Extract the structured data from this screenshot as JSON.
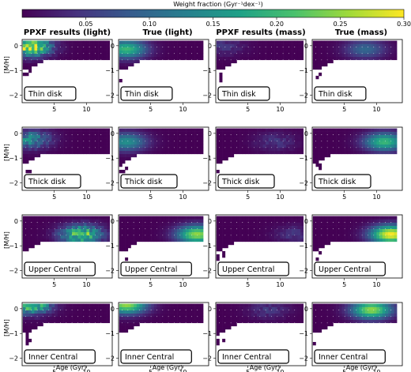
{
  "colorbar": {
    "label": "Weight fraction (Gyr⁻¹dex⁻¹)",
    "ticks": [
      "0.05",
      "0.10",
      "0.15",
      "0.20",
      "0.25",
      "0.30"
    ],
    "range": [
      0.0,
      0.3
    ],
    "colors": [
      "#440154",
      "#46327e",
      "#365c8d",
      "#277f8e",
      "#1fa187",
      "#4ac16d",
      "#a0da39",
      "#fde725"
    ]
  },
  "columns": [
    "PPXF results (light)",
    "True (light)",
    "PPXF results (mass)",
    "True (mass)"
  ],
  "rows": [
    "Thin disk",
    "Thick disk",
    "Upper Central",
    "Inner Central"
  ],
  "axes": {
    "ylabel": "[M/H]",
    "xlabel": "Age (Gyr)",
    "xticks": [
      "5",
      "10"
    ],
    "yticks": [
      "0",
      "−1",
      "−2"
    ]
  },
  "chart_data": {
    "type": "heatmap",
    "description_axes": {
      "x": "Age (Gyr)",
      "y": "[M/H]",
      "xlim": [
        0,
        14
      ],
      "ylim": [
        -2.3,
        0.25
      ]
    },
    "panels": [
      {
        "row": "Thin disk",
        "column": "PPXF results (light)",
        "peak_age": 1,
        "peak_mh": -0.1,
        "peak_weight": 0.3
      },
      {
        "row": "Thin disk",
        "column": "True (light)",
        "peak_age": 1,
        "peak_mh": -0.2,
        "peak_weight": 0.2
      },
      {
        "row": "Thin disk",
        "column": "PPXF results (mass)",
        "peak_age": 1,
        "peak_mh": -0.1,
        "peak_weight": 0.05
      },
      {
        "row": "Thin disk",
        "column": "True (mass)",
        "peak_age": 8,
        "peak_mh": -0.2,
        "peak_weight": 0.1
      },
      {
        "row": "Thick disk",
        "column": "PPXF results (light)",
        "peak_age": 1,
        "peak_mh": -0.3,
        "peak_weight": 0.15
      },
      {
        "row": "Thick disk",
        "column": "True (light)",
        "peak_age": 1,
        "peak_mh": -0.4,
        "peak_weight": 0.15
      },
      {
        "row": "Thick disk",
        "column": "PPXF results (mass)",
        "peak_age": 9,
        "peak_mh": -0.4,
        "peak_weight": 0.05
      },
      {
        "row": "Thick disk",
        "column": "True (mass)",
        "peak_age": 11,
        "peak_mh": -0.4,
        "peak_weight": 0.2
      },
      {
        "row": "Upper Central",
        "column": "PPXF results (light)",
        "peak_age": 9,
        "peak_mh": -0.6,
        "peak_weight": 0.25
      },
      {
        "row": "Upper Central",
        "column": "True (light)",
        "peak_age": 12,
        "peak_mh": -0.6,
        "peak_weight": 0.25
      },
      {
        "row": "Upper Central",
        "column": "PPXF results (mass)",
        "peak_age": 12,
        "peak_mh": -0.6,
        "peak_weight": 0.05
      },
      {
        "row": "Upper Central",
        "column": "True (mass)",
        "peak_age": 12,
        "peak_mh": -0.6,
        "peak_weight": 0.3
      },
      {
        "row": "Inner Central",
        "column": "PPXF results (light)",
        "peak_age": 1,
        "peak_mh": 0.1,
        "peak_weight": 0.25
      },
      {
        "row": "Inner Central",
        "column": "True (light)",
        "peak_age": 1,
        "peak_mh": 0.1,
        "peak_weight": 0.25
      },
      {
        "row": "Inner Central",
        "column": "PPXF results (mass)",
        "peak_age": 8,
        "peak_mh": -0.1,
        "peak_weight": 0.05
      },
      {
        "row": "Inner Central",
        "column": "True (mass)",
        "peak_age": 9,
        "peak_mh": -0.1,
        "peak_weight": 0.25
      }
    ]
  }
}
